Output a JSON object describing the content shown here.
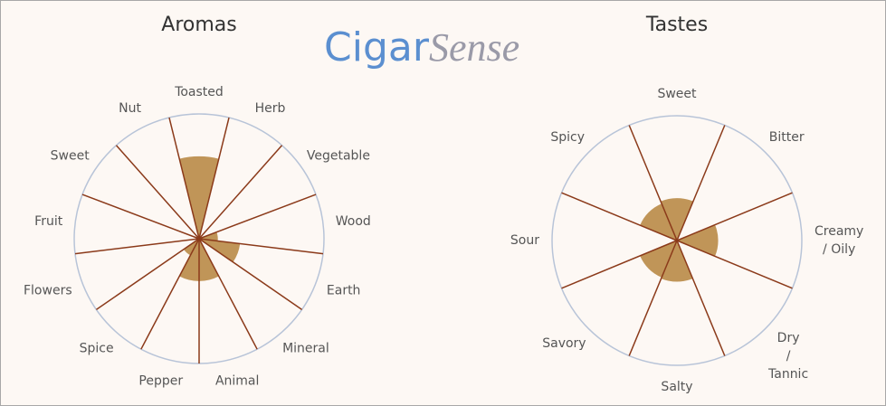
{
  "logo": {
    "part1": "Cigar",
    "part2": "Sense"
  },
  "chart_data": [
    {
      "type": "polar",
      "title": "Aromas",
      "categories": [
        "Toasted",
        "Herb",
        "Vegetable",
        "Wood",
        "Earth",
        "Mineral",
        "Animal",
        "Pepper",
        "Spice",
        "Flowers",
        "Fruit",
        "Sweet",
        "Nut"
      ],
      "values": [
        6.6,
        0,
        0,
        1.5,
        3.3,
        0,
        3.4,
        3.4,
        1.5,
        0,
        0,
        0,
        0
      ],
      "rlim": [
        0,
        10
      ],
      "color": "#c09558",
      "line_color": "#8b3a1a",
      "circle_color": "#b8c4d8"
    },
    {
      "type": "polar",
      "title": "Tastes",
      "categories": [
        "Sweet",
        "Bitter",
        "Creamy\n/ Oily",
        "Dry\n/\nTannic",
        "Salty",
        "Savory",
        "Sour",
        "Spicy"
      ],
      "values": [
        3.4,
        0,
        3.3,
        0,
        3.3,
        3.2,
        0,
        3.2
      ],
      "rlim": [
        0,
        10
      ],
      "color": "#c09558",
      "line_color": "#8b3a1a",
      "circle_color": "#b8c4d8"
    }
  ]
}
